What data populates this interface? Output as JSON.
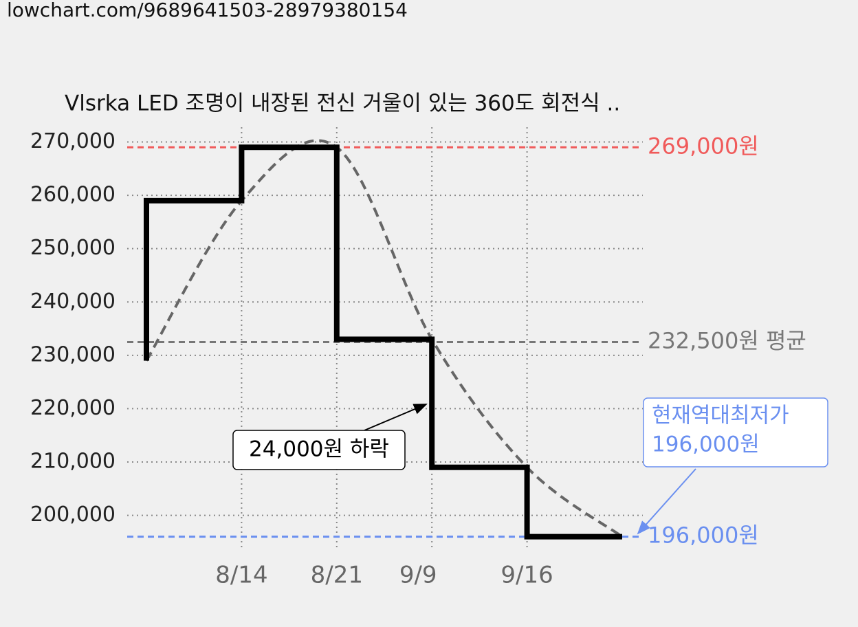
{
  "source": "lowchart.com/9689641503-28979380154",
  "chart_data": {
    "type": "step",
    "title": "Vlsrka LED 조명이 내장된 전신 거울이 있는 360도 회전식 ..",
    "categories": [
      null,
      "8/14",
      "8/21",
      "9/9",
      "9/16",
      null
    ],
    "values": [
      229000,
      259000,
      269000,
      233000,
      209000,
      196000
    ],
    "color": "#000000",
    "trend_color": "#666666",
    "ylim": [
      193500,
      272000
    ],
    "yticks": [
      {
        "value": 200000,
        "label": "200,000"
      },
      {
        "value": 210000,
        "label": "210,000"
      },
      {
        "value": 220000,
        "label": "220,000"
      },
      {
        "value": 230000,
        "label": "230,000"
      },
      {
        "value": 240000,
        "label": "240,000"
      },
      {
        "value": 250000,
        "label": "250,000"
      },
      {
        "value": 260000,
        "label": "260,000"
      },
      {
        "value": 270000,
        "label": "270,000"
      }
    ],
    "grid": true,
    "reference_lines": [
      {
        "value": 269000,
        "label": "269,000원",
        "color": "#f05a5a"
      },
      {
        "value": 232500,
        "label": "232,500원 평균",
        "color": "#777777"
      },
      {
        "value": 196000,
        "label": "196,000원",
        "color": "#6a8ff0"
      }
    ],
    "annotations": [
      {
        "text": [
          "24,000원 하락"
        ],
        "color": "#000000"
      },
      {
        "text": [
          "현재역대최저가",
          "196,000원"
        ],
        "color": "#6a8ff0"
      }
    ]
  }
}
